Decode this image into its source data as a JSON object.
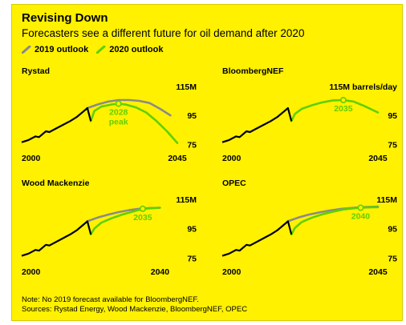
{
  "header": {
    "title": "Revising Down",
    "subtitle": "Forecasters see a different future for oil demand after 2020"
  },
  "legend": [
    {
      "label": "2019 outlook",
      "color": "#8a8a8a"
    },
    {
      "label": "2020 outlook",
      "color": "#5fd000"
    }
  ],
  "colors": {
    "history": "#000000",
    "outlook_2019": "#8a8a8a",
    "outlook_2020": "#5fd000",
    "background": "#fff100"
  },
  "footnote": {
    "note": "Note: No 2019 forecast available for BloombergNEF.",
    "sources": "Sources: Rystad Energy, Wood Mackenzie, BloombergNEF, OPEC"
  },
  "chart_data": [
    {
      "type": "line",
      "title": "Rystad",
      "x_start_label": "2000",
      "x_end_label": "2045",
      "xlim": [
        2000,
        2045
      ],
      "ylim": [
        73,
        116
      ],
      "y_ticks": [
        "115M",
        "95",
        "75"
      ],
      "annotation": {
        "line1": "2028",
        "line2": "peak",
        "x": 2028,
        "y": 103
      },
      "history": {
        "x": [
          2000,
          2002,
          2004,
          2005,
          2007,
          2008,
          2010,
          2012,
          2014,
          2016,
          2018,
          2019,
          2020
        ],
        "y": [
          76.5,
          78,
          80.5,
          80,
          84,
          83.5,
          86,
          88.5,
          91,
          94,
          98,
          100,
          91
        ]
      },
      "series": [
        {
          "name": "2019 outlook",
          "x": [
            2019,
            2022,
            2025,
            2028,
            2031,
            2034,
            2037,
            2040,
            2043
          ],
          "y": [
            100,
            102.5,
            104.5,
            105.5,
            105.5,
            105,
            103.5,
            99.5,
            95
          ]
        },
        {
          "name": "2020 outlook",
          "x": [
            2020,
            2021,
            2023,
            2026,
            2028,
            2030,
            2033,
            2036,
            2039,
            2042,
            2045
          ],
          "y": [
            91,
            98,
            101,
            102.5,
            103,
            102.5,
            100.5,
            97,
            91,
            84,
            76
          ]
        }
      ]
    },
    {
      "type": "line",
      "title": "BloombergNEF",
      "x_start_label": "2000",
      "x_end_label": "2045",
      "xlim": [
        2000,
        2045
      ],
      "ylim": [
        73,
        116
      ],
      "y_ticks": [
        "115M barrels/day",
        "95",
        "75"
      ],
      "annotation": {
        "line1": "2035",
        "line2": "",
        "x": 2035,
        "y": 105.5
      },
      "history": {
        "x": [
          2000,
          2002,
          2004,
          2005,
          2007,
          2008,
          2010,
          2012,
          2014,
          2016,
          2018,
          2019,
          2020
        ],
        "y": [
          76.5,
          78,
          80.5,
          80,
          84,
          83.5,
          86,
          88.5,
          91,
          94,
          98,
          100,
          91
        ]
      },
      "series": [
        {
          "name": "2020 outlook",
          "x": [
            2020,
            2021,
            2023,
            2026,
            2029,
            2032,
            2035,
            2038,
            2041,
            2045
          ],
          "y": [
            91,
            96,
            99.5,
            102,
            104,
            105.3,
            105.5,
            104.5,
            101.5,
            97
          ]
        }
      ]
    },
    {
      "type": "line",
      "title": "Wood Mackenzie",
      "x_start_label": "2000",
      "x_end_label": "2040",
      "xlim": [
        2000,
        2045
      ],
      "ylim": [
        73,
        116
      ],
      "y_ticks": [
        "115M",
        "95",
        "75"
      ],
      "annotation": {
        "line1": "2035",
        "line2": "",
        "x": 2035,
        "y": 108.5
      },
      "history": {
        "x": [
          2000,
          2002,
          2004,
          2005,
          2007,
          2008,
          2010,
          2012,
          2014,
          2016,
          2018,
          2019,
          2020
        ],
        "y": [
          76.5,
          78,
          80.5,
          80,
          84,
          83.5,
          86,
          88.5,
          91,
          94,
          98,
          100,
          91
        ]
      },
      "series": [
        {
          "name": "2019 outlook",
          "x": [
            2019,
            2022,
            2025,
            2028,
            2031,
            2034,
            2037,
            2040
          ],
          "y": [
            100,
            102.5,
            104.5,
            106.2,
            107.5,
            108.5,
            109,
            109.2
          ]
        },
        {
          "name": "2020 outlook",
          "x": [
            2020,
            2021,
            2023,
            2026,
            2029,
            2032,
            2035,
            2038,
            2040
          ],
          "y": [
            91,
            95,
            99,
            102,
            104.5,
            106.5,
            108.5,
            109,
            109.2
          ]
        }
      ]
    },
    {
      "type": "line",
      "title": "OPEC",
      "x_start_label": "2000",
      "x_end_label": "2045",
      "xlim": [
        2000,
        2045
      ],
      "ylim": [
        73,
        116
      ],
      "y_ticks": [
        "115M",
        "95",
        "75"
      ],
      "annotation": {
        "line1": "2040",
        "line2": "",
        "x": 2040,
        "y": 109.2
      },
      "history": {
        "x": [
          2000,
          2002,
          2004,
          2005,
          2007,
          2008,
          2010,
          2012,
          2014,
          2016,
          2018,
          2019,
          2020
        ],
        "y": [
          76.5,
          78,
          80.5,
          80,
          84,
          83.5,
          86,
          88.5,
          91,
          94,
          98,
          100,
          91
        ]
      },
      "series": [
        {
          "name": "2019 outlook",
          "x": [
            2019,
            2022,
            2025,
            2028,
            2031,
            2034,
            2037,
            2040,
            2043,
            2045
          ],
          "y": [
            100,
            102.5,
            104.5,
            106,
            107.3,
            108.3,
            109,
            109.5,
            109.8,
            110
          ]
        },
        {
          "name": "2020 outlook",
          "x": [
            2020,
            2021,
            2023,
            2026,
            2029,
            2032,
            2035,
            2038,
            2040,
            2043,
            2045
          ],
          "y": [
            91,
            95.5,
            99.5,
            102.5,
            104.8,
            106.5,
            108,
            108.8,
            109.2,
            109.5,
            109.6
          ]
        }
      ]
    }
  ]
}
